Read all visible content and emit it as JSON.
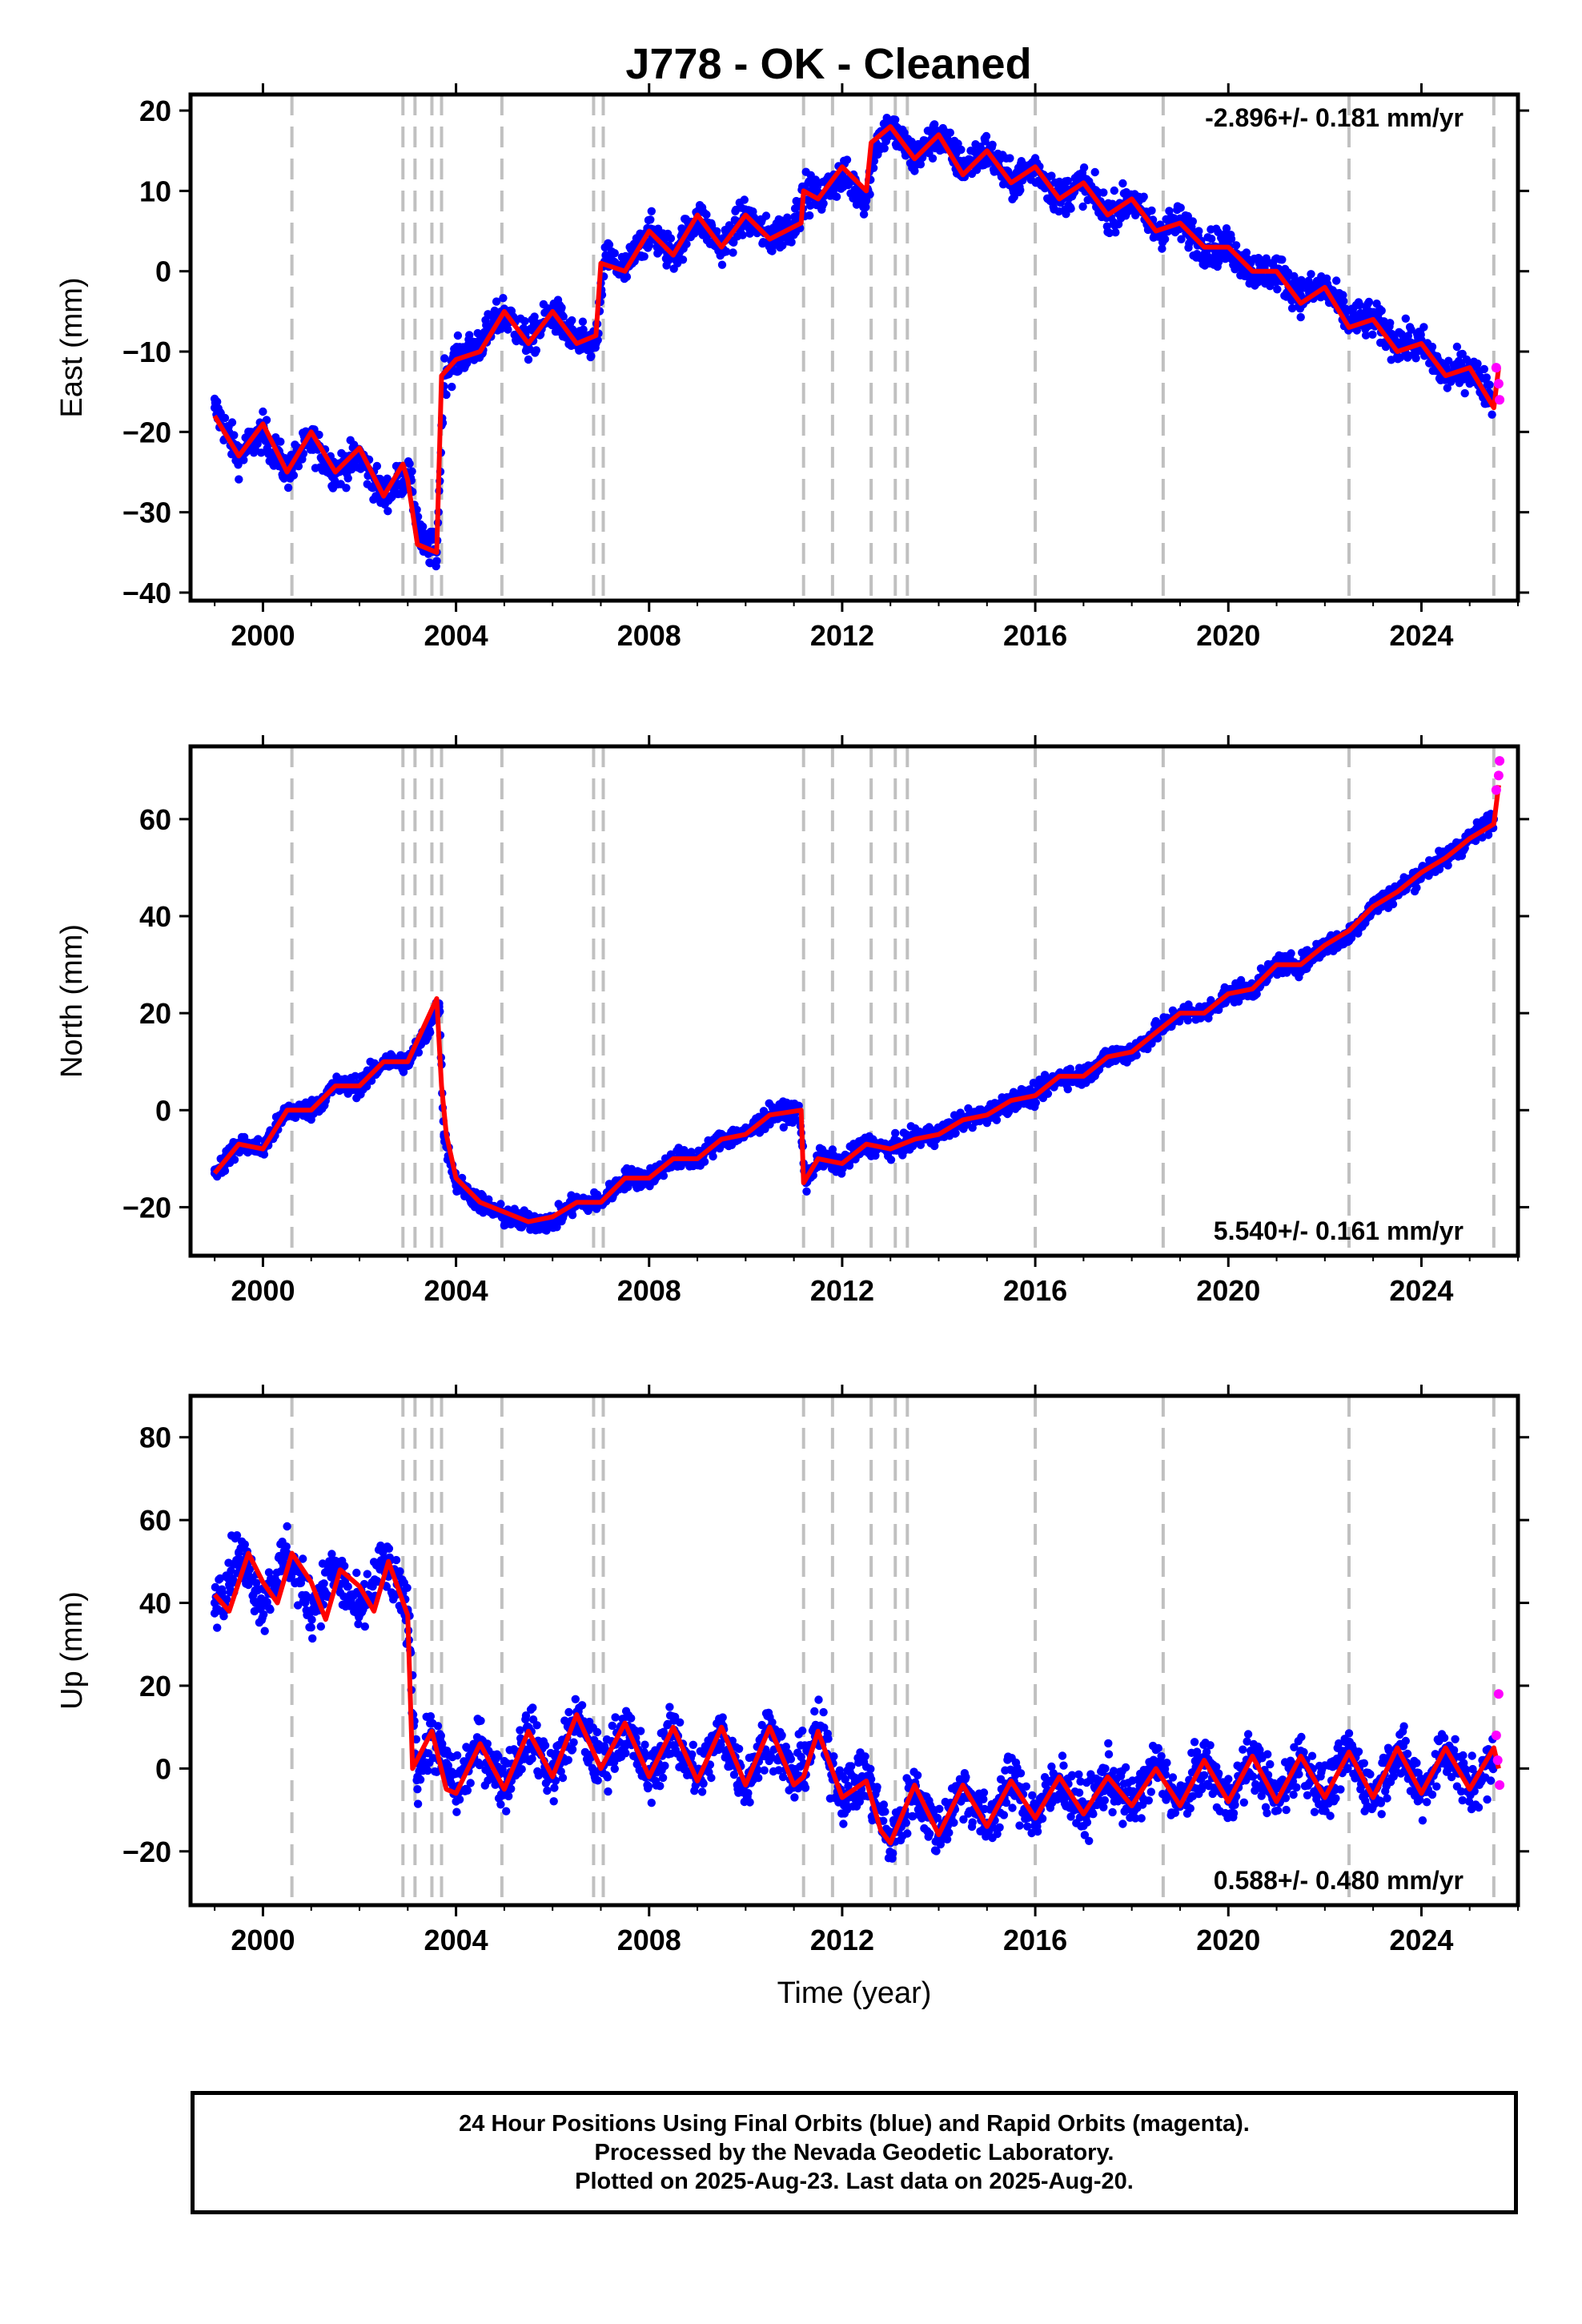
{
  "title": "J778  - OK - Cleaned",
  "chart_data": [
    {
      "type": "scatter",
      "name": "east",
      "ylabel": "East (mm)",
      "xlabel": "",
      "xlim": [
        1998.5,
        2026.0
      ],
      "ylim": [
        -41,
        22
      ],
      "xticks": [
        2000,
        2004,
        2008,
        2012,
        2016,
        2020,
        2024
      ],
      "yticks": [
        -40,
        -30,
        -20,
        -10,
        0,
        10,
        20
      ],
      "rate_label": "-2.896+/- 0.181 mm/yr",
      "rate_position": "top-right",
      "steps": [
        2000.6,
        2002.9,
        2003.15,
        2003.5,
        2003.7,
        2004.95,
        2006.85,
        2007.05,
        2011.2,
        2011.8,
        2012.6,
        2013.1,
        2013.35,
        2016.0,
        2018.65,
        2022.5,
        2025.5
      ],
      "series": [
        {
          "name": "Final Orbits",
          "color": "#0000ff",
          "x": [
            1999.0,
            1999.5,
            2000.0,
            2000.5,
            2001.0,
            2001.5,
            2002.0,
            2002.5,
            2003.0,
            2003.3,
            2003.6,
            2003.75,
            2004.0,
            2004.5,
            2005.0,
            2005.5,
            2006.0,
            2006.5,
            2006.9,
            2007.1,
            2007.5,
            2008.0,
            2008.5,
            2009.0,
            2009.5,
            2010.0,
            2010.5,
            2011.0,
            2011.25,
            2011.5,
            2012.0,
            2012.5,
            2012.7,
            2013.0,
            2013.5,
            2014.0,
            2014.5,
            2015.0,
            2015.5,
            2016.0,
            2016.5,
            2017.0,
            2017.5,
            2018.0,
            2018.5,
            2019.0,
            2019.5,
            2020.0,
            2020.5,
            2021.0,
            2021.5,
            2022.0,
            2022.5,
            2023.0,
            2023.5,
            2024.0,
            2024.5,
            2025.0,
            2025.5
          ],
          "y": [
            -17,
            -23,
            -20,
            -25,
            -21,
            -25,
            -23,
            -28,
            -25,
            -34,
            -35,
            -13,
            -11,
            -9,
            -5,
            -9,
            -5,
            -9,
            -9,
            2,
            0,
            5,
            2,
            7,
            3,
            7,
            4,
            6,
            10,
            9,
            12,
            9,
            16,
            18,
            14,
            17,
            13,
            15,
            11,
            13,
            9,
            11,
            7,
            9,
            5,
            6,
            3,
            3,
            0,
            0,
            -3,
            -2,
            -6,
            -6,
            -9,
            -9,
            -13,
            -12,
            -16
          ]
        },
        {
          "name": "Rapid Orbits",
          "color": "#ff00ff",
          "x": [
            2025.55,
            2025.6,
            2025.62
          ],
          "y": [
            -12,
            -14,
            -16
          ]
        },
        {
          "name": "Model",
          "color": "#ff0000",
          "x": [
            1999.0,
            1999.5,
            2000.0,
            2000.5,
            2001.0,
            2001.5,
            2002.0,
            2002.5,
            2002.9,
            2003.0,
            2003.2,
            2003.6,
            2003.7,
            2004.0,
            2004.5,
            2005.0,
            2005.5,
            2006.0,
            2006.5,
            2006.9,
            2007.0,
            2007.5,
            2008.0,
            2008.5,
            2009.0,
            2009.5,
            2010.0,
            2010.5,
            2011.15,
            2011.2,
            2011.5,
            2012.0,
            2012.5,
            2012.6,
            2013.0,
            2013.5,
            2014.0,
            2014.5,
            2015.0,
            2015.5,
            2016.0,
            2016.5,
            2017.0,
            2017.5,
            2018.0,
            2018.5,
            2019.0,
            2019.5,
            2020.0,
            2020.5,
            2021.0,
            2021.5,
            2022.0,
            2022.5,
            2023.0,
            2023.5,
            2024.0,
            2024.5,
            2025.0,
            2025.5,
            2025.6
          ],
          "y": [
            -18,
            -23,
            -19,
            -25,
            -20,
            -25,
            -22,
            -28,
            -24,
            -26,
            -34,
            -35,
            -13,
            -11,
            -10,
            -5,
            -9,
            -5,
            -9,
            -8,
            1,
            0,
            5,
            2,
            7,
            3,
            7,
            4,
            6,
            10,
            9,
            13,
            10,
            16,
            18,
            14,
            17,
            12,
            15,
            11,
            13,
            9,
            11,
            7,
            9,
            5,
            6,
            3,
            3,
            0,
            0,
            -4,
            -2,
            -7,
            -6,
            -10,
            -9,
            -13,
            -12,
            -17,
            -12
          ]
        }
      ]
    },
    {
      "type": "scatter",
      "name": "north",
      "ylabel": "North (mm)",
      "xlabel": "",
      "xlim": [
        1998.5,
        2026.0
      ],
      "ylim": [
        -30,
        75
      ],
      "xticks": [
        2000,
        2004,
        2008,
        2012,
        2016,
        2020,
        2024
      ],
      "yticks": [
        -20,
        0,
        20,
        40,
        60
      ],
      "rate_label": "5.540+/- 0.161 mm/yr",
      "rate_position": "bottom-right",
      "steps": [
        2000.6,
        2002.9,
        2003.15,
        2003.5,
        2003.7,
        2004.95,
        2006.85,
        2007.05,
        2011.2,
        2011.8,
        2012.6,
        2013.1,
        2013.35,
        2016.0,
        2018.65,
        2022.5,
        2025.5
      ],
      "series": [
        {
          "name": "Final Orbits",
          "color": "#0000ff",
          "x": [
            1999.0,
            1999.5,
            2000.0,
            2000.5,
            2001.0,
            2001.5,
            2002.0,
            2002.5,
            2003.0,
            2003.4,
            2003.65,
            2003.75,
            2004.0,
            2004.5,
            2005.0,
            2005.5,
            2006.0,
            2006.5,
            2007.0,
            2007.5,
            2008.0,
            2008.5,
            2009.0,
            2009.5,
            2010.0,
            2010.5,
            2011.1,
            2011.25,
            2011.5,
            2012.0,
            2012.5,
            2013.0,
            2013.5,
            2014.0,
            2014.5,
            2015.0,
            2015.5,
            2016.0,
            2016.5,
            2017.0,
            2017.5,
            2018.0,
            2018.5,
            2019.0,
            2019.5,
            2020.0,
            2020.5,
            2021.0,
            2021.5,
            2022.0,
            2022.5,
            2023.0,
            2023.5,
            2024.0,
            2024.5,
            2025.0,
            2025.5
          ],
          "y": [
            -13,
            -7,
            -8,
            0,
            0,
            5,
            5,
            10,
            10,
            16,
            22,
            -5,
            -15,
            -19,
            -22,
            -23,
            -23,
            -19,
            -19,
            -14,
            -14,
            -10,
            -10,
            -6,
            -5,
            -1,
            0,
            -15,
            -10,
            -11,
            -7,
            -8,
            -6,
            -5,
            -2,
            -1,
            2,
            3,
            7,
            7,
            11,
            12,
            16,
            20,
            20,
            24,
            25,
            30,
            30,
            34,
            36,
            42,
            45,
            49,
            52,
            56,
            60
          ]
        },
        {
          "name": "Rapid Orbits",
          "color": "#ff00ff",
          "x": [
            2025.55,
            2025.6,
            2025.62
          ],
          "y": [
            66,
            69,
            72
          ]
        },
        {
          "name": "Model",
          "color": "#ff0000",
          "x": [
            1999.0,
            1999.5,
            2000.0,
            2000.5,
            2001.0,
            2001.5,
            2002.0,
            2002.5,
            2003.0,
            2003.6,
            2003.7,
            2003.8,
            2004.0,
            2004.5,
            2005.0,
            2005.5,
            2006.0,
            2006.5,
            2007.0,
            2007.5,
            2008.0,
            2008.5,
            2009.0,
            2009.5,
            2010.0,
            2010.5,
            2011.15,
            2011.2,
            2011.5,
            2012.0,
            2012.5,
            2013.0,
            2013.5,
            2014.0,
            2014.5,
            2015.0,
            2015.5,
            2016.0,
            2016.5,
            2017.0,
            2017.5,
            2018.0,
            2018.5,
            2019.0,
            2019.5,
            2020.0,
            2020.5,
            2021.0,
            2021.5,
            2022.0,
            2022.5,
            2023.0,
            2023.5,
            2024.0,
            2024.5,
            2025.0,
            2025.5,
            2025.6
          ],
          "y": [
            -13,
            -7,
            -8,
            0,
            0,
            5,
            5,
            10,
            10,
            23,
            5,
            -5,
            -14,
            -19,
            -21,
            -23,
            -22,
            -19,
            -19,
            -14,
            -14,
            -10,
            -10,
            -6,
            -5,
            -1,
            0,
            -15,
            -10,
            -11,
            -7,
            -8,
            -6,
            -5,
            -2,
            -1,
            2,
            3,
            7,
            7,
            11,
            12,
            16,
            20,
            20,
            24,
            25,
            30,
            30,
            34,
            37,
            42,
            45,
            49,
            52,
            56,
            59,
            67
          ]
        }
      ]
    },
    {
      "type": "scatter",
      "name": "up",
      "ylabel": "Up (mm)",
      "xlabel": "Time (year)",
      "xlim": [
        1998.5,
        2026.0
      ],
      "ylim": [
        -33,
        90
      ],
      "xticks": [
        2000,
        2004,
        2008,
        2012,
        2016,
        2020,
        2024
      ],
      "yticks": [
        -20,
        0,
        20,
        40,
        60,
        80
      ],
      "rate_label": "0.588+/- 0.480 mm/yr",
      "rate_position": "bottom-right",
      "steps": [
        2000.6,
        2002.9,
        2003.15,
        2003.5,
        2003.7,
        2004.95,
        2006.85,
        2007.05,
        2011.2,
        2011.8,
        2012.6,
        2013.1,
        2013.35,
        2016.0,
        2018.65,
        2022.5,
        2025.5
      ],
      "series": [
        {
          "name": "Final Orbits",
          "color": "#0000ff",
          "x": [
            1999.0,
            1999.5,
            2000.0,
            2000.5,
            2001.0,
            2001.5,
            2002.0,
            2002.5,
            2003.0,
            2003.2,
            2003.5,
            2004.0,
            2004.5,
            2005.0,
            2005.5,
            2006.0,
            2006.5,
            2007.0,
            2007.5,
            2008.0,
            2008.5,
            2009.0,
            2009.5,
            2010.0,
            2010.5,
            2011.0,
            2011.5,
            2012.0,
            2012.5,
            2013.0,
            2013.5,
            2014.0,
            2014.5,
            2015.0,
            2015.5,
            2016.0,
            2016.5,
            2017.0,
            2017.5,
            2018.0,
            2018.5,
            2019.0,
            2019.5,
            2020.0,
            2020.5,
            2021.0,
            2021.5,
            2022.0,
            2022.5,
            2023.0,
            2023.5,
            2024.0,
            2024.5,
            2025.0,
            2025.5
          ],
          "y": [
            40,
            52,
            40,
            52,
            38,
            48,
            37,
            50,
            38,
            -2,
            8,
            -5,
            6,
            -4,
            9,
            -2,
            12,
            0,
            10,
            -2,
            9,
            -3,
            9,
            -4,
            10,
            -3,
            9,
            -6,
            -2,
            -18,
            -5,
            -16,
            -4,
            -14,
            -3,
            -12,
            -2,
            -11,
            -2,
            -9,
            1,
            -9,
            2,
            -8,
            3,
            -8,
            3,
            -7,
            4,
            -7,
            5,
            -6,
            5,
            -5,
            2
          ]
        },
        {
          "name": "Rapid Orbits",
          "color": "#ff00ff",
          "x": [
            2025.55,
            2025.58,
            2025.6,
            2025.62
          ],
          "y": [
            8,
            2,
            18,
            -4
          ]
        },
        {
          "name": "Model",
          "color": "#ff0000",
          "x": [
            1999.0,
            1999.3,
            1999.7,
            2000.0,
            2000.3,
            2000.6,
            2001.0,
            2001.3,
            2001.6,
            2002.0,
            2002.3,
            2002.6,
            2003.0,
            2003.1,
            2003.5,
            2003.8,
            2004.0,
            2004.5,
            2005.0,
            2005.5,
            2006.0,
            2006.5,
            2007.0,
            2007.5,
            2008.0,
            2008.5,
            2009.0,
            2009.5,
            2010.0,
            2010.5,
            2011.0,
            2011.2,
            2011.5,
            2012.0,
            2012.5,
            2012.8,
            2013.0,
            2013.5,
            2014.0,
            2014.5,
            2015.0,
            2015.5,
            2016.0,
            2016.5,
            2017.0,
            2017.5,
            2018.0,
            2018.5,
            2019.0,
            2019.5,
            2020.0,
            2020.5,
            2021.0,
            2021.5,
            2022.0,
            2022.5,
            2023.0,
            2023.5,
            2024.0,
            2024.5,
            2025.0,
            2025.5,
            2025.6
          ],
          "y": [
            42,
            38,
            52,
            45,
            40,
            52,
            45,
            36,
            48,
            44,
            38,
            50,
            37,
            0,
            9,
            -5,
            -6,
            6,
            -5,
            9,
            -2,
            13,
            0,
            11,
            -2,
            10,
            -3,
            10,
            -4,
            10,
            -4,
            -2,
            9,
            -7,
            -3,
            -15,
            -18,
            -4,
            -16,
            -4,
            -14,
            -3,
            -12,
            -2,
            -11,
            -2,
            -9,
            0,
            -9,
            2,
            -8,
            3,
            -8,
            3,
            -7,
            4,
            -7,
            5,
            -6,
            5,
            -5,
            5,
            0
          ]
        }
      ]
    }
  ],
  "footer": {
    "line1": "24 Hour Positions Using Final Orbits (blue) and Rapid Orbits (magenta).",
    "line2": "Processed by the Nevada Geodetic Laboratory.",
    "line3": "Plotted on 2025-Aug-23. Last data on 2025-Aug-20."
  }
}
